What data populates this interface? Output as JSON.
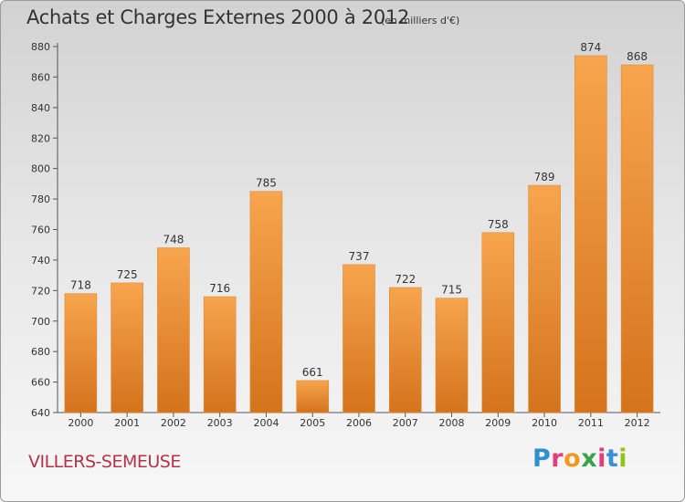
{
  "header": {
    "title": "Achats et Charges Externes 2000 à 2012",
    "unit": "(en milliers d'€)"
  },
  "footer": {
    "commune": "VILLERS-SEMEUSE",
    "brand": "Proxiti",
    "brand_letters": [
      "P",
      "r",
      "o",
      "x",
      "i",
      "t",
      "i"
    ],
    "brand_colors": [
      "#2f8fd0",
      "#e23f7a",
      "#f29a1d",
      "#3aa34a",
      "#e23f7a",
      "#3a8fd8",
      "#95c11f"
    ]
  },
  "colors": {
    "bar_top": "#f7a54e",
    "bar_bottom": "#d4731c",
    "axis": "#555555",
    "grid": "#c8c8c8",
    "commune": "#b5334a"
  },
  "chart_data": {
    "type": "bar",
    "title": "Achats et Charges Externes 2000 à 2012",
    "subtitle": "(en milliers d'€)",
    "xlabel": "",
    "ylabel": "",
    "categories": [
      "2000",
      "2001",
      "2002",
      "2003",
      "2004",
      "2005",
      "2006",
      "2007",
      "2008",
      "2009",
      "2010",
      "2011",
      "2012"
    ],
    "values": [
      718,
      725,
      748,
      716,
      785,
      661,
      737,
      722,
      715,
      758,
      789,
      874,
      868
    ],
    "ylim": [
      640,
      880
    ],
    "yticks": [
      640,
      660,
      680,
      700,
      720,
      740,
      760,
      780,
      800,
      820,
      840,
      860,
      880
    ],
    "grid": false,
    "data_labels": true
  }
}
